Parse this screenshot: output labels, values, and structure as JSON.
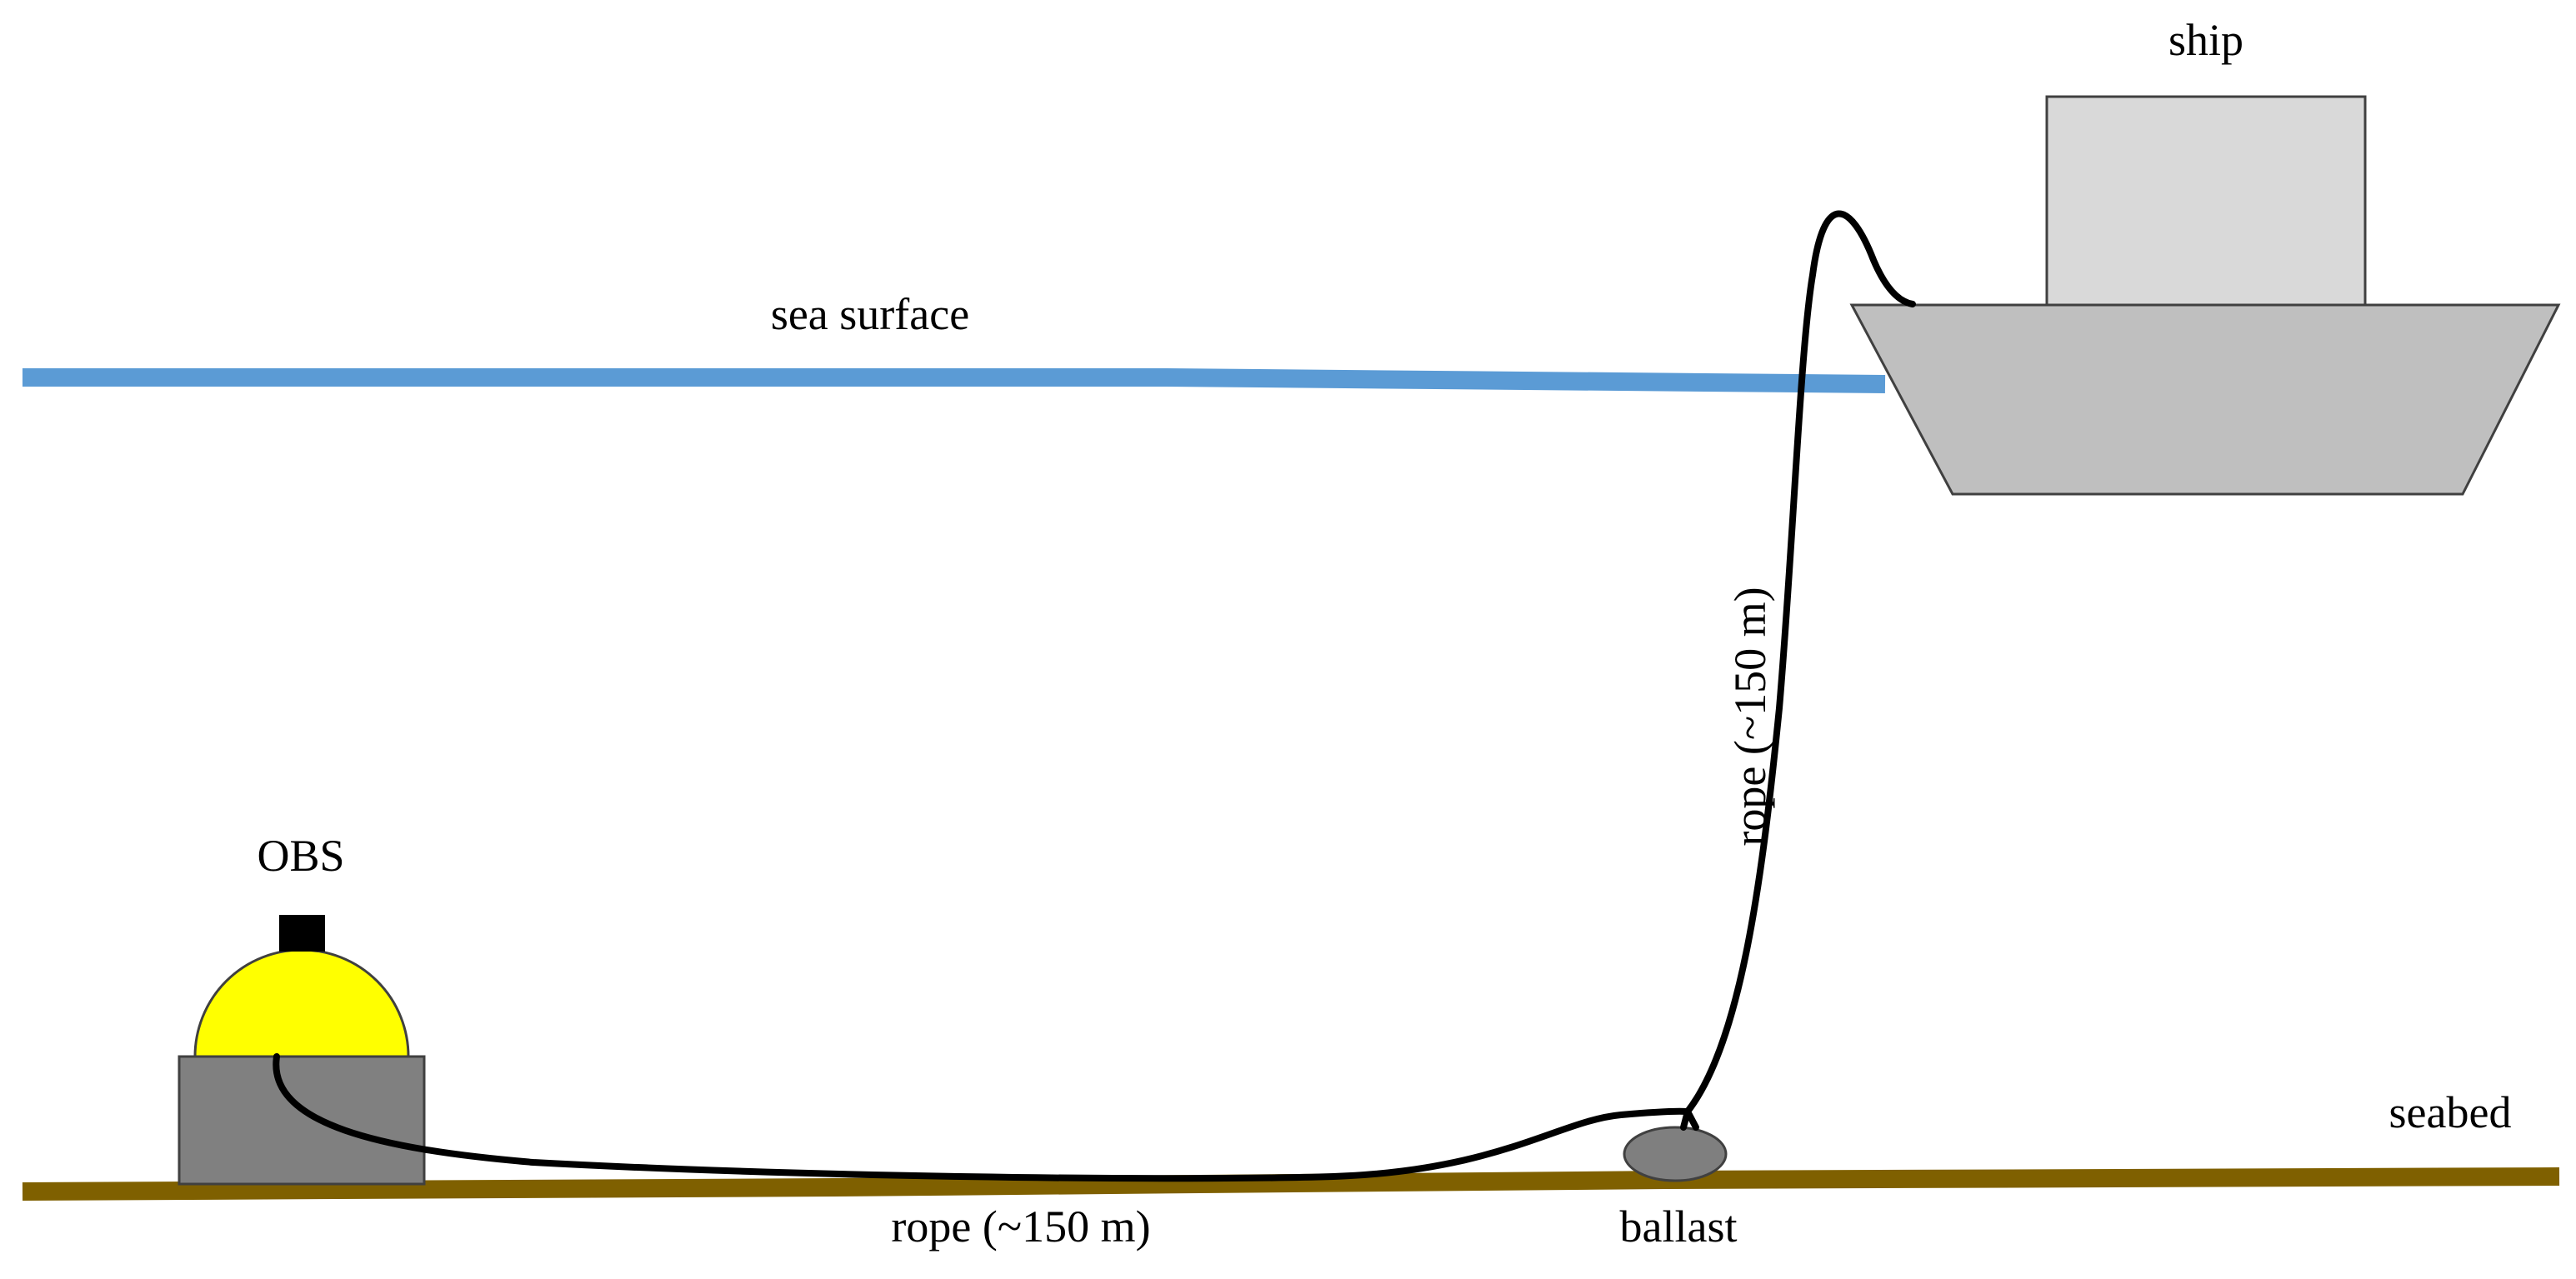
{
  "labels": {
    "ship": "ship",
    "sea_surface": "sea surface",
    "obs": "OBS",
    "seabed": "seabed",
    "ballast": "ballast",
    "rope_vertical": "rope (~150 m)",
    "rope_horizontal": "rope (~150 m)"
  },
  "colors": {
    "sea_surface": "#5b9bd5",
    "seabed": "#7f6000",
    "ship_hull": "#bfbfbf",
    "ship_cabin": "#d9d9d9",
    "obs_dome": "#ffff00",
    "obs_base": "#808080",
    "obs_cap": "#000000",
    "ballast": "#7f7f7f",
    "rope": "#000000",
    "outline": "#404040"
  }
}
